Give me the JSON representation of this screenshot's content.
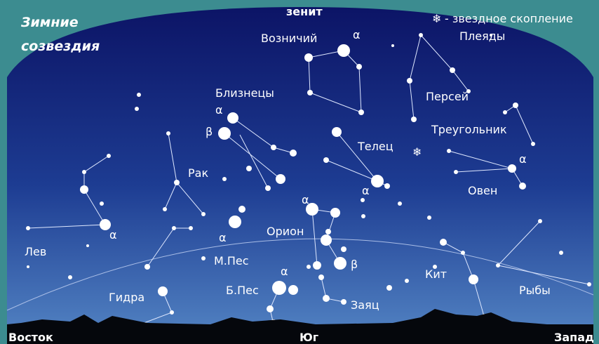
{
  "header": {
    "title_line1": "Зимние",
    "title_line2": "созвездия"
  },
  "zenith": "зенит",
  "legend": {
    "text": "- звездное скопление",
    "name": "Плеяды"
  },
  "labels": [
    "Возничий",
    "α",
    "Близнецы",
    "α",
    "β",
    "Персей",
    "Треугольник",
    "Телец",
    "α",
    "Рак",
    "Овен",
    "α",
    "α",
    "α",
    "Орион",
    "α",
    "Лев",
    "М.Пес",
    "β",
    "Кит",
    "Б.Пес",
    "α",
    "Гидра",
    "Заяц",
    "Рыбы"
  ],
  "directions": [
    "Восток",
    "Юг",
    "Запад"
  ]
}
